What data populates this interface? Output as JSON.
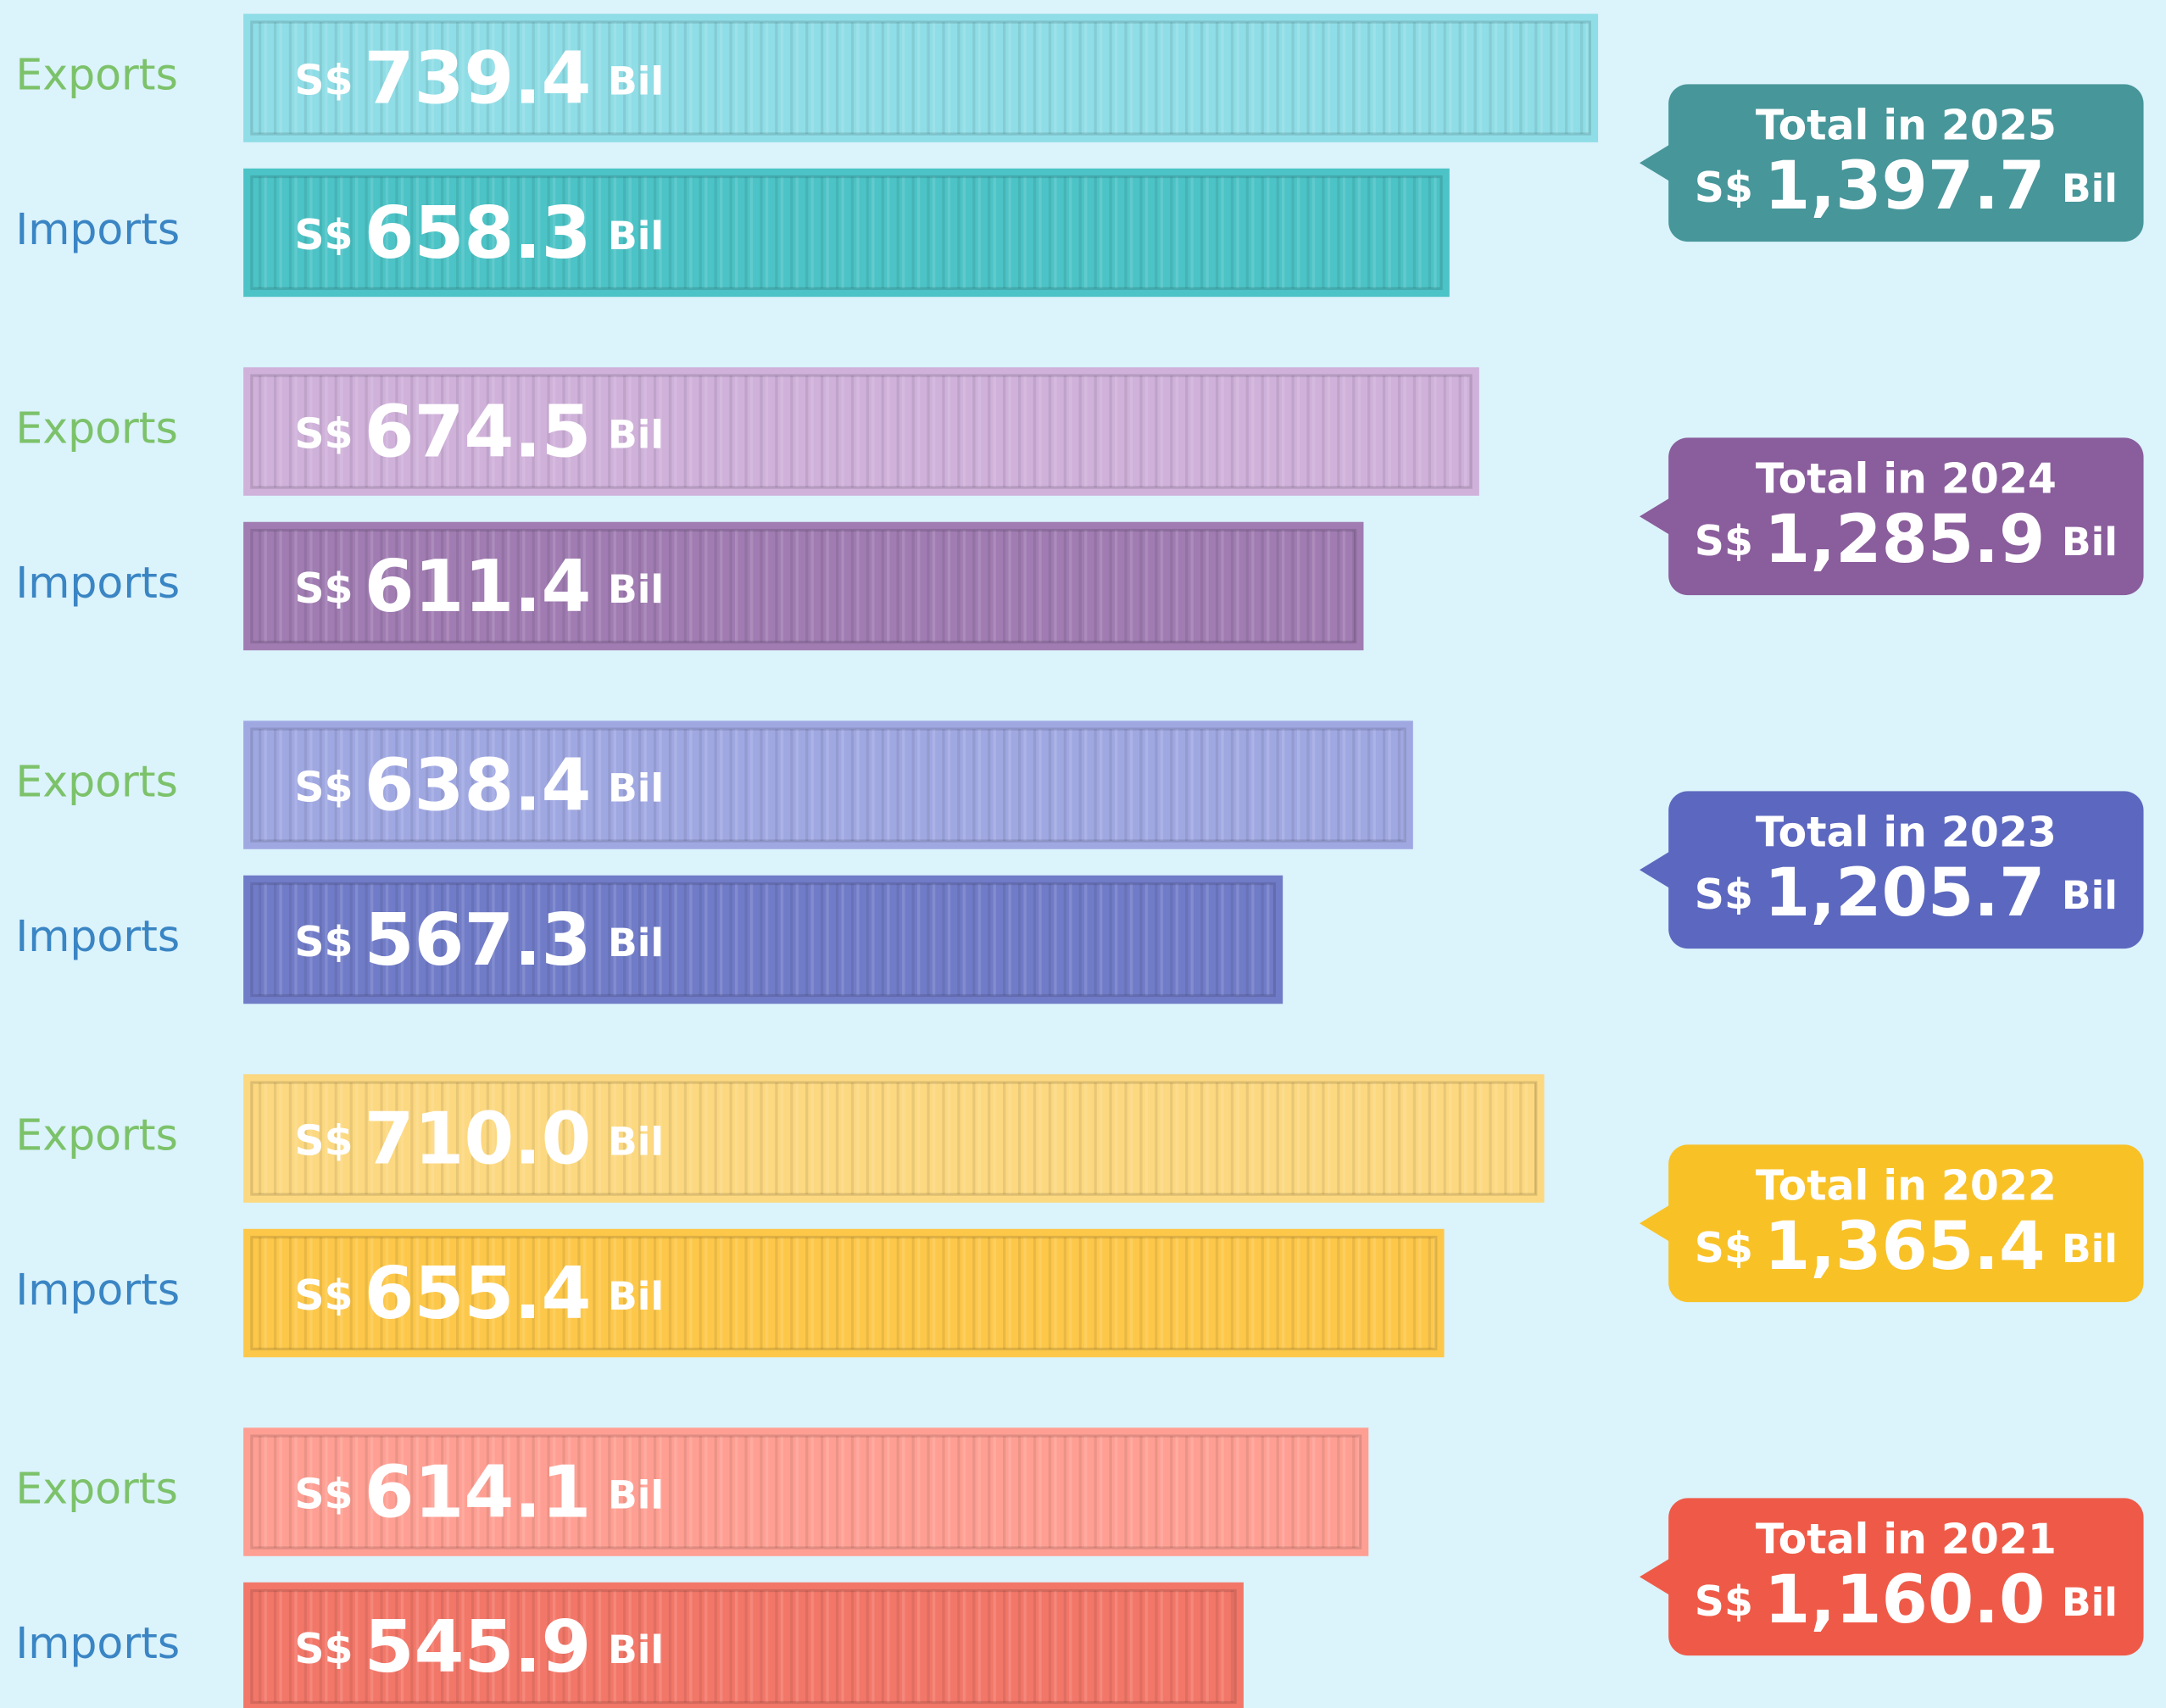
{
  "chart_data": {
    "type": "bar",
    "currency": "S$",
    "unit": "Bil",
    "series": [
      {
        "name": "Exports",
        "color": "#7cc26a",
        "values": [
          739.4,
          674.5,
          638.4,
          710.0,
          614.1
        ],
        "value_labels": [
          "739.4",
          "674.5",
          "638.4",
          "710.0",
          "614.1"
        ],
        "colors": [
          "#8fdde6",
          "#cfb1da",
          "#a0a8e2",
          "#fcd880",
          "#ff9f93"
        ]
      },
      {
        "name": "Imports",
        "color": "#3a85c4",
        "values": [
          658.3,
          611.4,
          567.3,
          655.4,
          545.9
        ],
        "value_labels": [
          "658.3",
          "611.4",
          "567.3",
          "655.4",
          "545.9"
        ],
        "colors": [
          "#4cc3c6",
          "#a07cb2",
          "#717cc8",
          "#fdc84a",
          "#f27769"
        ]
      }
    ],
    "totals": {
      "labels": [
        "Total in 2025",
        "Total in 2024",
        "Total in 2023",
        "Total in 2022",
        "Total in 2021"
      ],
      "values": [
        1397.7,
        1285.9,
        1205.7,
        1365.4,
        1160.0
      ],
      "value_labels": [
        "1,397.7",
        "1,285.9",
        "1,205.7",
        "1,365.4",
        "1,160.0"
      ],
      "colors": [
        "#47969a",
        "#8a5d9c",
        "#5c68bf",
        "#f8c126",
        "#ef5a48"
      ]
    }
  }
}
